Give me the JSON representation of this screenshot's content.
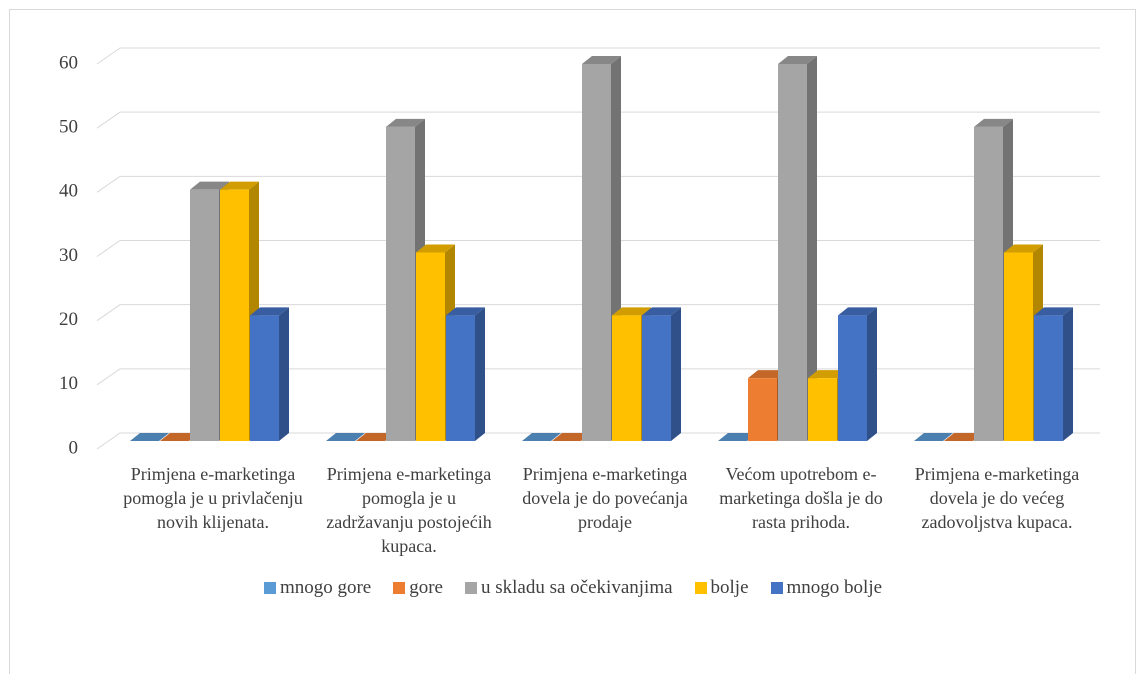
{
  "chart_data": {
    "type": "bar3d",
    "categories": [
      "Primjena e-marketinga pomogla je u privlačenju novih klijenata.",
      "Primjena e-marketinga pomogla je u zadržavanju postojećih kupaca.",
      "Primjena e-marketinga dovela je do povećanja prodaje",
      "Većom upotrebom e-marketinga došla je do rasta prihoda.",
      "Primjena e-marketinga dovela je do većeg zadovoljstva kupaca."
    ],
    "series": [
      {
        "name": "mnogo gore",
        "color": "#5b9bd5",
        "values": [
          0,
          0,
          0,
          0,
          0
        ]
      },
      {
        "name": "gore",
        "color": "#ed7d31",
        "values": [
          0,
          0,
          0,
          10,
          0
        ]
      },
      {
        "name": "u skladu sa očekivanjima",
        "color": "#a5a5a5",
        "values": [
          40,
          50,
          60,
          60,
          50
        ]
      },
      {
        "name": "bolje",
        "color": "#ffc000",
        "values": [
          40,
          30,
          20,
          10,
          30
        ]
      },
      {
        "name": "mnogo bolje",
        "color": "#4472c4",
        "values": [
          20,
          20,
          20,
          20,
          20
        ]
      }
    ],
    "ylim": [
      0,
      60
    ],
    "yticks": [
      0,
      10,
      20,
      30,
      40,
      50,
      60
    ],
    "grid": true,
    "legend": "bottom"
  }
}
